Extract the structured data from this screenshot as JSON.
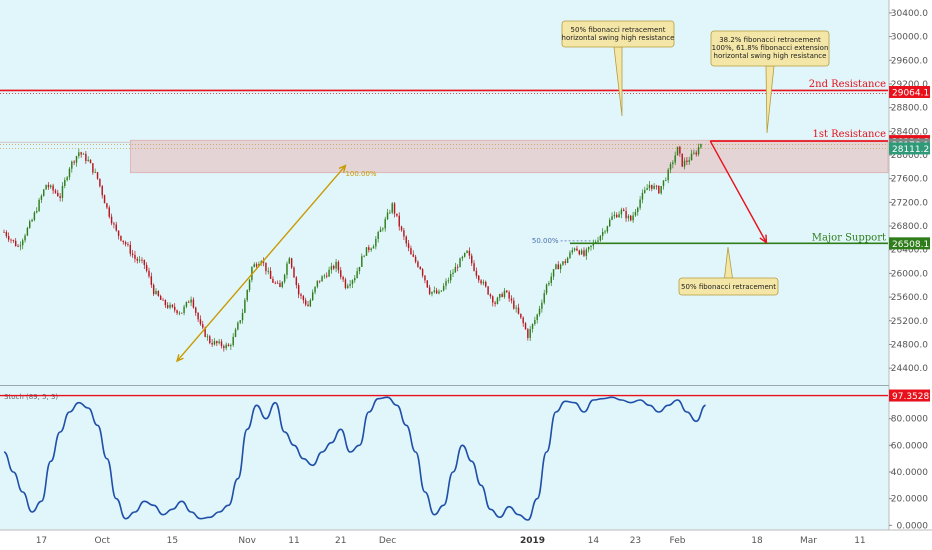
{
  "colors": {
    "background": "#e1f6fb",
    "resistance": "#e8101a",
    "support": "#2e7d1a",
    "zone": "#e8b8b8",
    "candle_up": "#2e7d1a",
    "candle_down": "#b8151c",
    "stoch": "#1f4fa8",
    "arrow": "#c99a00",
    "callout_bg": "#f3e6a6",
    "callout_border": "#b59c3d"
  },
  "chart_data": [
    {
      "type": "candlestick",
      "y_ticks": [
        24400,
        24800,
        25200,
        25600,
        26000,
        26400,
        26800,
        27200,
        27600,
        28000,
        28400,
        28800,
        29200,
        29600,
        30000,
        30400
      ],
      "y_tick_labels": [
        "24400.0",
        "24800.0",
        "25200.0",
        "25600.0",
        "26000.0",
        "26400.0",
        "26800.0",
        "27200.0",
        "27600.0",
        "28000.0",
        "28400.0",
        "28800.0",
        "29200.0",
        "29600.0",
        "30000.0",
        "30400.0"
      ],
      "ylim": [
        24200,
        30550
      ],
      "x_ticks": [
        {
          "label": "17",
          "day": 17
        },
        {
          "label": "Oct",
          "day": 30
        },
        {
          "label": "15",
          "day": 45
        },
        {
          "label": "Nov",
          "day": 61
        },
        {
          "label": "11",
          "day": 71
        },
        {
          "label": "21",
          "day": 81
        },
        {
          "label": "Dec",
          "day": 91
        },
        {
          "label": "2019",
          "day": 122,
          "bold": true
        },
        {
          "label": "14",
          "day": 135
        },
        {
          "label": "23",
          "day": 144
        },
        {
          "label": "Feb",
          "day": 153
        },
        {
          "label": "18",
          "day": 170
        },
        {
          "label": "Mar",
          "day": 181
        },
        {
          "label": "11",
          "day": 192
        }
      ],
      "xlim": [
        9,
        198
      ],
      "price_path": [
        [
          9,
          26700
        ],
        [
          12,
          26450
        ],
        [
          15,
          26900
        ],
        [
          18,
          27500
        ],
        [
          21,
          27300
        ],
        [
          23,
          27800
        ],
        [
          25,
          28050
        ],
        [
          27,
          27900
        ],
        [
          29,
          27600
        ],
        [
          31,
          27100
        ],
        [
          33,
          26700
        ],
        [
          35,
          26500
        ],
        [
          37,
          26250
        ],
        [
          39,
          26150
        ],
        [
          41,
          25700
        ],
        [
          43,
          25500
        ],
        [
          45,
          25400
        ],
        [
          47,
          25350
        ],
        [
          49,
          25600
        ],
        [
          51,
          25100
        ],
        [
          53,
          24850
        ],
        [
          55,
          24800
        ],
        [
          57,
          24760
        ],
        [
          58,
          24900
        ],
        [
          60,
          25350
        ],
        [
          62,
          26100
        ],
        [
          64,
          26250
        ],
        [
          66,
          25900
        ],
        [
          68,
          25750
        ],
        [
          70,
          26300
        ],
        [
          72,
          25650
        ],
        [
          74,
          25450
        ],
        [
          76,
          25850
        ],
        [
          78,
          26000
        ],
        [
          80,
          26150
        ],
        [
          82,
          25800
        ],
        [
          84,
          25950
        ],
        [
          86,
          26350
        ],
        [
          88,
          26500
        ],
        [
          90,
          26800
        ],
        [
          92,
          27150
        ],
        [
          94,
          26700
        ],
        [
          96,
          26300
        ],
        [
          98,
          26100
        ],
        [
          100,
          25700
        ],
        [
          102,
          25650
        ],
        [
          104,
          25900
        ],
        [
          106,
          26150
        ],
        [
          108,
          26350
        ],
        [
          110,
          26000
        ],
        [
          112,
          25750
        ],
        [
          114,
          25500
        ],
        [
          116,
          25700
        ],
        [
          118,
          25450
        ],
        [
          120,
          25150
        ],
        [
          121,
          24950
        ],
        [
          123,
          25300
        ],
        [
          125,
          25800
        ],
        [
          127,
          26100
        ],
        [
          129,
          26200
        ],
        [
          131,
          26450
        ],
        [
          133,
          26300
        ],
        [
          135,
          26500
        ],
        [
          137,
          26700
        ],
        [
          139,
          26950
        ],
        [
          141,
          27050
        ],
        [
          143,
          26900
        ],
        [
          145,
          27250
        ],
        [
          147,
          27500
        ],
        [
          149,
          27400
        ],
        [
          151,
          27700
        ],
        [
          153,
          28100
        ],
        [
          154,
          27850
        ],
        [
          155,
          27900
        ],
        [
          157,
          28050
        ],
        [
          158,
          28200
        ]
      ],
      "resistance_2nd": {
        "value": 29064.1,
        "label": "2nd Resistance",
        "tag": "29064.1"
      },
      "resistance_1st": {
        "value": 28234.8,
        "label": "1st Resistance",
        "tag": "28234.8"
      },
      "zone_levels": {
        "upper": 28178.1,
        "lower": 28111.2,
        "upper_tag": "28178.1",
        "lower_tag": "28111.2"
      },
      "zone_bounds": {
        "top": 28250,
        "bottom": 27700
      },
      "major_support": {
        "value": 26508.1,
        "label": "Major Support",
        "tag": "26508.1"
      },
      "fib_100": {
        "label": "100.00%",
        "day_start": 36,
        "day_end": 73,
        "value": 27700
      },
      "fib_50": {
        "label": "50.00%",
        "day_start": 128,
        "day_end": 135,
        "value": 26550
      },
      "diag_arrow": {
        "from": [
          46,
          24520
        ],
        "to": [
          82,
          27820
        ]
      },
      "projection_arrow": {
        "from": [
          160,
          28234.8
        ],
        "to": [
          172,
          26520
        ]
      }
    },
    {
      "type": "line",
      "title": "Stoch (89, 5, 3)",
      "series": [
        {
          "values": [
            [
              9,
              55
            ],
            [
              11,
              40
            ],
            [
              13,
              25
            ],
            [
              15,
              10
            ],
            [
              17,
              18
            ],
            [
              19,
              48
            ],
            [
              21,
              70
            ],
            [
              23,
              85
            ],
            [
              25,
              92
            ],
            [
              27,
              88
            ],
            [
              29,
              75
            ],
            [
              31,
              50
            ],
            [
              33,
              20
            ],
            [
              35,
              5
            ],
            [
              37,
              10
            ],
            [
              39,
              18
            ],
            [
              41,
              15
            ],
            [
              43,
              8
            ],
            [
              45,
              12
            ],
            [
              47,
              18
            ],
            [
              49,
              10
            ],
            [
              51,
              5
            ],
            [
              53,
              6
            ],
            [
              55,
              10
            ],
            [
              57,
              15
            ],
            [
              59,
              35
            ],
            [
              61,
              72
            ],
            [
              63,
              90
            ],
            [
              65,
              80
            ],
            [
              67,
              92
            ],
            [
              69,
              70
            ],
            [
              71,
              60
            ],
            [
              73,
              50
            ],
            [
              75,
              45
            ],
            [
              77,
              55
            ],
            [
              79,
              62
            ],
            [
              81,
              72
            ],
            [
              83,
              55
            ],
            [
              85,
              60
            ],
            [
              87,
              85
            ],
            [
              89,
              95
            ],
            [
              91,
              96
            ],
            [
              93,
              90
            ],
            [
              95,
              75
            ],
            [
              97,
              55
            ],
            [
              99,
              25
            ],
            [
              101,
              8
            ],
            [
              103,
              15
            ],
            [
              105,
              40
            ],
            [
              107,
              60
            ],
            [
              109,
              48
            ],
            [
              111,
              30
            ],
            [
              113,
              12
            ],
            [
              115,
              6
            ],
            [
              117,
              14
            ],
            [
              119,
              8
            ],
            [
              121,
              4
            ],
            [
              123,
              20
            ],
            [
              125,
              55
            ],
            [
              127,
              85
            ],
            [
              129,
              93
            ],
            [
              131,
              92
            ],
            [
              133,
              85
            ],
            [
              135,
              94
            ],
            [
              137,
              95
            ],
            [
              139,
              96
            ],
            [
              141,
              94
            ],
            [
              143,
              92
            ],
            [
              145,
              94
            ],
            [
              147,
              90
            ],
            [
              149,
              85
            ],
            [
              151,
              90
            ],
            [
              153,
              94
            ],
            [
              155,
              85
            ],
            [
              157,
              78
            ],
            [
              159,
              90
            ]
          ]
        }
      ],
      "y_ticks": [
        0,
        20,
        40,
        60,
        80
      ],
      "y_tick_labels": [
        "0.0000",
        "20.0000",
        "40.0000",
        "60.0000",
        "80.0000"
      ],
      "ylim": [
        -2,
        100
      ],
      "level": {
        "value": 97.3528,
        "tag": "97.3528"
      }
    }
  ],
  "callouts": {
    "left": [
      "50% fibonacci retracement",
      "horizontal swing high resistance"
    ],
    "right": [
      "38.2% fibonacci retracement",
      "100%, 61.8% fibonacci extension",
      "horizontal swing high resistance"
    ],
    "bottom": [
      "50% fibonacci retracement"
    ]
  }
}
